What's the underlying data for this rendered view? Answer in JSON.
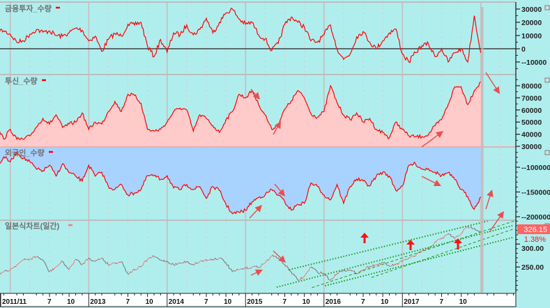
{
  "colors": {
    "background": "#b0eeee",
    "line": "#ff0000",
    "institution_fill": "#ffcaca",
    "foreign_fill": "#a8d2ff",
    "price_up": "#f07878",
    "price_down": "#707070",
    "channel": "#1a9a1a",
    "annotation_arrow": "#e85050",
    "signal_arrow": "#ff1010",
    "price_badge": "#ff6464"
  },
  "chart_data": [
    {
      "type": "line",
      "title": "금융투자_수량",
      "frequency": "monthly",
      "start": "2011-11",
      "end": "2018-01",
      "ylim": [
        -19500,
        35250
      ],
      "yticks": [
        30000,
        20000,
        10000,
        0,
        -10000
      ],
      "zero_line": true,
      "values": [
        14000,
        13500,
        11000,
        5000,
        6000,
        11000,
        14500,
        12500,
        13500,
        10000,
        9500,
        12000,
        15500,
        14000,
        6000,
        9500,
        -2000,
        7000,
        11500,
        9500,
        18500,
        18000,
        20000,
        2000,
        -6000,
        7000,
        -2500,
        12000,
        10500,
        18000,
        10500,
        14500,
        23000,
        12000,
        20000,
        27000,
        30000,
        22500,
        18500,
        20000,
        10500,
        7500,
        -1500,
        4000,
        18500,
        24000,
        20000,
        16500,
        6000,
        5000,
        10500,
        18000,
        0,
        -8000,
        -4000,
        9000,
        13000,
        5000,
        0,
        6000,
        12000,
        15000,
        -4000,
        -10000,
        -3000,
        2500,
        3500,
        -6000,
        0,
        -10000,
        -3000,
        0,
        -10000,
        25000,
        -3000
      ]
    },
    {
      "type": "area",
      "title": "투신_수량",
      "frequency": "monthly",
      "start": "2011-11",
      "end": "2018-01",
      "ylim": [
        30000,
        89200
      ],
      "yticks": [
        80000,
        70000,
        60000,
        50000,
        40000,
        30000
      ],
      "values": [
        45500,
        36000,
        44000,
        36000,
        35700,
        38600,
        46000,
        53000,
        48400,
        56000,
        45500,
        48400,
        50000,
        57600,
        44000,
        50000,
        48400,
        58700,
        67000,
        58700,
        73000,
        72000,
        65600,
        44000,
        42600,
        44000,
        50000,
        58700,
        61600,
        60000,
        42600,
        56000,
        53000,
        47000,
        41500,
        52000,
        58700,
        73000,
        70000,
        76000,
        64500,
        56000,
        44000,
        48400,
        60500,
        67400,
        76000,
        70000,
        57000,
        54000,
        58700,
        80000,
        66000,
        56000,
        52000,
        57600,
        50000,
        53000,
        44000,
        41500,
        37000,
        50000,
        44000,
        38600,
        38000,
        38000,
        39800,
        47000,
        52000,
        64500,
        79000,
        79000,
        64500,
        76000,
        83000
      ]
    },
    {
      "type": "area",
      "title": "외국인_수량",
      "frequency": "monthly",
      "start": "2011-11",
      "end": "2018-01",
      "ylim": [
        -207000,
        -59200
      ],
      "yticks": [
        -100000,
        -150000,
        -200000
      ],
      "values": [
        -100000,
        -79000,
        -89000,
        -70000,
        -82000,
        -89000,
        -104000,
        -107000,
        -96000,
        -118000,
        -93000,
        -111000,
        -118000,
        -128000,
        -96000,
        -118000,
        -110000,
        -139000,
        -145000,
        -135000,
        -156000,
        -152000,
        -145000,
        -117000,
        -117000,
        -125000,
        -117000,
        -142000,
        -145000,
        -135000,
        -145000,
        -139000,
        -163000,
        -139000,
        -147000,
        -175000,
        -194000,
        -191000,
        -187000,
        -170000,
        -161000,
        -156000,
        -145000,
        -156000,
        -170000,
        -187000,
        -175000,
        -173000,
        -132000,
        -139000,
        -156000,
        -166000,
        -135000,
        -173000,
        -139000,
        -124000,
        -128000,
        -138000,
        -118000,
        -110000,
        -118000,
        -147000,
        -138000,
        -96000,
        -93000,
        -104000,
        -103000,
        -110000,
        -117000,
        -111000,
        -125000,
        -145000,
        -159000,
        -185000,
        -160000
      ]
    },
    {
      "type": "line",
      "title": "일본식차트(일간)",
      "frequency": "monthly",
      "start": "2011-11",
      "end": "2018-01",
      "ylim": [
        194,
        352
      ],
      "yticks": [
        "300.00",
        "250.00"
      ],
      "last_price": "326.15",
      "change_pct": "1.38%",
      "values": [
        235,
        239,
        244,
        255,
        265,
        267,
        273,
        265,
        239,
        250,
        262,
        244,
        267,
        255,
        270,
        262,
        270,
        255,
        259,
        262,
        235,
        244,
        250,
        267,
        273,
        265,
        262,
        255,
        258,
        262,
        255,
        262,
        265,
        267,
        270,
        259,
        239,
        244,
        247,
        250,
        250,
        259,
        274,
        270,
        255,
        239,
        221,
        229,
        250,
        239,
        236,
        221,
        236,
        244,
        242,
        236,
        244,
        252,
        255,
        259,
        252,
        255,
        262,
        270,
        274,
        285,
        289,
        305,
        311,
        323,
        312,
        323,
        338,
        335,
        326.15
      ],
      "channel_lines": [
        {
          "style": "dotted",
          "points": [
            [
              "2015-07-21",
              244
            ],
            [
              "2018-02-10",
              351
            ]
          ]
        },
        {
          "style": "dotted",
          "points": [
            [
              "2015-05-24",
              206
            ],
            [
              "2018-06-03",
              341
            ]
          ]
        },
        {
          "style": "dotted",
          "points": [
            [
              "2016-01-06",
              209
            ],
            [
              "2018-06-03",
              315
            ]
          ]
        },
        {
          "style": "dashed",
          "points": [
            [
              "2015-11-06",
              205
            ],
            [
              "2018-06-03",
              350
            ]
          ]
        },
        {
          "style": "dashed",
          "points": [
            [
              "2016-08-09",
              227
            ],
            [
              "2018-06-03",
              333
            ]
          ]
        }
      ]
    }
  ],
  "x_axis": {
    "ticks": [
      {
        "label": "2011/11",
        "date": "2011-11"
      },
      {
        "label": "7",
        "date": "2012-07"
      },
      {
        "label": "10",
        "date": "2012-10"
      },
      {
        "label": "2013",
        "date": "2013-01"
      },
      {
        "label": "7",
        "date": "2013-07"
      },
      {
        "label": "10",
        "date": "2013-10"
      },
      {
        "label": "2014",
        "date": "2014-01"
      },
      {
        "label": "7",
        "date": "2014-07"
      },
      {
        "label": "10",
        "date": "2014-10"
      },
      {
        "label": "2015",
        "date": "2015-01"
      },
      {
        "label": "7",
        "date": "2015-07"
      },
      {
        "label": "10",
        "date": "2015-10"
      },
      {
        "label": "2016",
        "date": "2016-01"
      },
      {
        "label": "7",
        "date": "2016-07"
      },
      {
        "label": "10",
        "date": "2016-10"
      },
      {
        "label": "2017",
        "date": "2017-01"
      },
      {
        "label": "7",
        "date": "2017-07"
      },
      {
        "label": "10",
        "date": "2017-10"
      }
    ]
  }
}
